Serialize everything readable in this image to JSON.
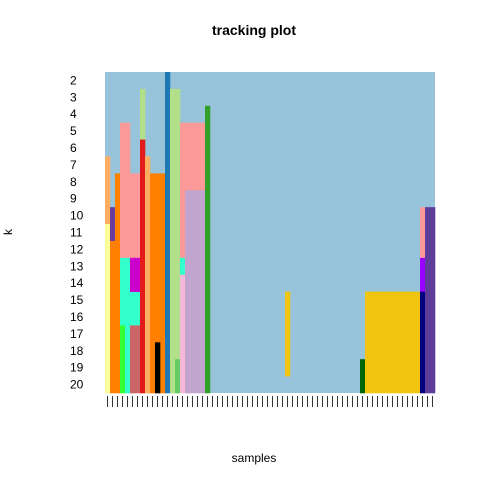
{
  "chart_data": {
    "type": "heatmap",
    "title": "tracking plot",
    "xlabel": "samples",
    "ylabel": "k",
    "y_categories": [
      "2",
      "3",
      "4",
      "5",
      "6",
      "7",
      "8",
      "9",
      "10",
      "11",
      "12",
      "13",
      "14",
      "15",
      "16",
      "17",
      "18",
      "19",
      "20"
    ],
    "n_samples": 66,
    "background_color": "#97C3DB",
    "cells": [
      {
        "x_start": 1,
        "x_end": 1,
        "k_start": 7,
        "k_end": 10,
        "color": "#FDAE61"
      },
      {
        "x_start": 1,
        "x_end": 1,
        "k_start": 11,
        "k_end": 20,
        "color": "#FFFF99"
      },
      {
        "x_start": 2,
        "x_end": 2,
        "k_start": 10,
        "k_end": 11,
        "color": "#6A3D9A"
      },
      {
        "x_start": 2,
        "x_end": 2,
        "k_start": 12,
        "k_end": 20,
        "color": "#FF7F00"
      },
      {
        "x_start": 3,
        "x_end": 3,
        "k_start": 8,
        "k_end": 20,
        "color": "#FF7F00"
      },
      {
        "x_start": 4,
        "x_end": 5,
        "k_start": 5,
        "k_end": 12,
        "color": "#FB9A99"
      },
      {
        "x_start": 4,
        "x_end": 4,
        "k_start": 13,
        "k_end": 14,
        "color": "#33FFCC"
      },
      {
        "x_start": 4,
        "x_end": 4,
        "k_start": 15,
        "k_end": 16,
        "color": "#33FFCC"
      },
      {
        "x_start": 4,
        "x_end": 4,
        "k_start": 17,
        "k_end": 20,
        "color": "#33FF33"
      },
      {
        "x_start": 5,
        "x_end": 5,
        "k_start": 13,
        "k_end": 14,
        "color": "#33FFCC"
      },
      {
        "x_start": 5,
        "x_end": 7,
        "k_start": 15,
        "k_end": 16,
        "color": "#33FFCC"
      },
      {
        "x_start": 5,
        "x_end": 5,
        "k_start": 17,
        "k_end": 20,
        "color": "#33FFCC"
      },
      {
        "x_start": 6,
        "x_end": 7,
        "k_start": 8,
        "k_end": 12,
        "color": "#FB9A99"
      },
      {
        "x_start": 6,
        "x_end": 7,
        "k_start": 13,
        "k_end": 14,
        "color": "#CC00CC"
      },
      {
        "x_start": 6,
        "x_end": 7,
        "k_start": 17,
        "k_end": 20,
        "color": "#CC6666"
      },
      {
        "x_start": 8,
        "x_end": 8,
        "k_start": 3,
        "k_end": 5,
        "color": "#B2DF8A"
      },
      {
        "x_start": 8,
        "x_end": 8,
        "k_start": 6,
        "k_end": 20,
        "color": "#E31A1C"
      },
      {
        "x_start": 9,
        "x_end": 9,
        "k_start": 7,
        "k_end": 20,
        "color": "#FDAE61"
      },
      {
        "x_start": 10,
        "x_end": 12,
        "k_start": 8,
        "k_end": 20,
        "color": "#FF7F00"
      },
      {
        "x_start": 11,
        "x_end": 11,
        "k_start": 18,
        "k_end": 20,
        "color": "#000000"
      },
      {
        "x_start": 13,
        "x_end": 13,
        "k_start": 2,
        "k_end": 20,
        "color": "#1F78B4"
      },
      {
        "x_start": 14,
        "x_end": 15,
        "k_start": 3,
        "k_end": 20,
        "color": "#B2DF8A"
      },
      {
        "x_start": 15,
        "x_end": 15,
        "k_start": 19,
        "k_end": 20,
        "color": "#66CC66"
      },
      {
        "x_start": 16,
        "x_end": 16,
        "k_start": 5,
        "k_end": 12,
        "color": "#FB9A99"
      },
      {
        "x_start": 16,
        "x_end": 16,
        "k_start": 13,
        "k_end": 13,
        "color": "#33FFCC"
      },
      {
        "x_start": 16,
        "x_end": 16,
        "k_start": 14,
        "k_end": 20,
        "color": "#F5B8D8"
      },
      {
        "x_start": 17,
        "x_end": 20,
        "k_start": 5,
        "k_end": 8,
        "color": "#FB9A99"
      },
      {
        "x_start": 17,
        "x_end": 20,
        "k_start": 9,
        "k_end": 20,
        "color": "#C2A5CF"
      },
      {
        "x_start": 21,
        "x_end": 21,
        "k_start": 4,
        "k_end": 20,
        "color": "#33A02C"
      },
      {
        "x_start": 37,
        "x_end": 37,
        "k_start": 15,
        "k_end": 19,
        "color": "#F1C40F"
      },
      {
        "x_start": 52,
        "x_end": 52,
        "k_start": 19,
        "k_end": 20,
        "color": "#006400"
      },
      {
        "x_start": 53,
        "x_end": 63,
        "k_start": 15,
        "k_end": 20,
        "color": "#F1C40F"
      },
      {
        "x_start": 64,
        "x_end": 64,
        "k_start": 10,
        "k_end": 12,
        "color": "#FB9A99"
      },
      {
        "x_start": 64,
        "x_end": 64,
        "k_start": 13,
        "k_end": 14,
        "color": "#9900FF"
      },
      {
        "x_start": 64,
        "x_end": 64,
        "k_start": 15,
        "k_end": 20,
        "color": "#000080"
      },
      {
        "x_start": 65,
        "x_end": 66,
        "k_start": 10,
        "k_end": 20,
        "color": "#5E3C99"
      }
    ]
  }
}
